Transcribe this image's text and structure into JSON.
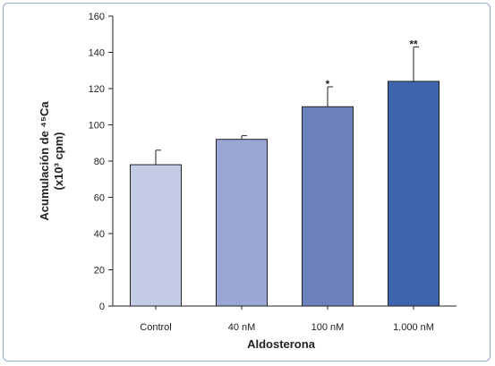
{
  "chart_data": {
    "type": "bar",
    "categories": [
      "Control",
      "40 nM",
      "100 nM",
      "1.000 nM"
    ],
    "values": [
      78,
      92,
      110,
      124
    ],
    "errors": [
      8,
      2,
      11,
      19
    ],
    "significance": [
      "",
      "",
      "*",
      "**"
    ],
    "colors": [
      "#c5cde6",
      "#9aa6d4",
      "#6c82bd",
      "#3d64ad"
    ],
    "xlabel": "Aldosterona",
    "ylabel_line1": "Acumulación de ⁴⁵Ca",
    "ylabel_line2": "(x10³ cpm)",
    "ylim": [
      0,
      160
    ],
    "yticks": [
      0,
      20,
      40,
      60,
      80,
      100,
      120,
      140,
      160
    ],
    "grid": false
  }
}
